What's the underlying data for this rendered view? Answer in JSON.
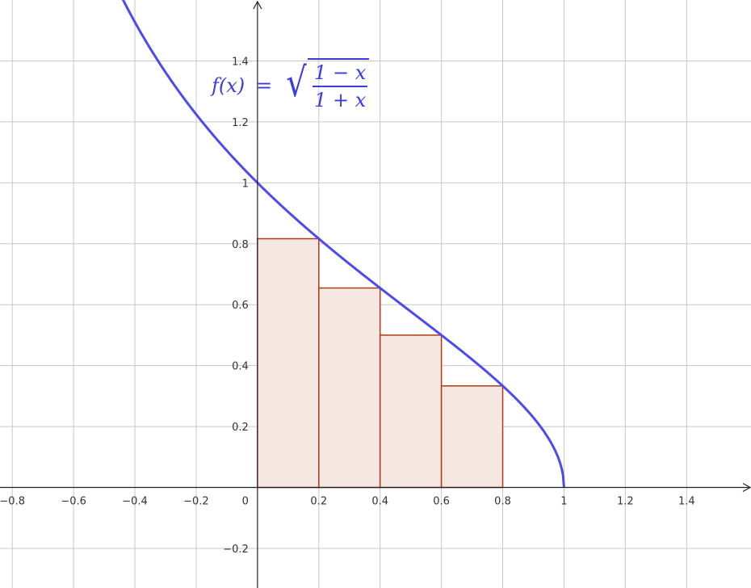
{
  "chart_data": {
    "type": "area",
    "title": "",
    "xlabel": "",
    "ylabel": "",
    "xlim": [
      -0.84,
      1.61
    ],
    "ylim": [
      -0.33,
      1.6
    ],
    "grid": true,
    "x_ticks": [
      -0.8,
      -0.6,
      -0.4,
      -0.2,
      0.2,
      0.4,
      0.6,
      0.8,
      1,
      1.2,
      1.4
    ],
    "x_tick_labels": [
      "−0.8",
      "−0.6",
      "−0.4",
      "−0.2",
      "0.2",
      "0.4",
      "0.6",
      "0.8",
      "1",
      "1.2",
      "1.4"
    ],
    "y_ticks": [
      -0.2,
      0.2,
      0.4,
      0.6,
      0.8,
      1,
      1.2,
      1.4
    ],
    "y_tick_labels": [
      "−0.2",
      "0.2",
      "0.4",
      "0.6",
      "0.8",
      "1",
      "1.2",
      "1.4"
    ],
    "origin_label": "0",
    "function": {
      "label_lhs": "f(x)",
      "label_eq": "=",
      "numerator": "1 − x",
      "denominator": "1 + x",
      "domain": [
        -0.99,
        1
      ],
      "color": "#4b4bf0"
    },
    "rectangles": {
      "color_stroke": "#b03a14",
      "color_fill": "#f5e8e3",
      "bars": [
        {
          "x0": 0.0,
          "x1": 0.2,
          "height": 0.8165
        },
        {
          "x0": 0.2,
          "x1": 0.4,
          "height": 0.6547
        },
        {
          "x0": 0.4,
          "x1": 0.6,
          "height": 0.5
        },
        {
          "x0": 0.6,
          "x1": 0.8,
          "height": 0.3333
        },
        {
          "x0": 0.8,
          "x1": 1.0,
          "height": 0.0
        }
      ]
    }
  }
}
